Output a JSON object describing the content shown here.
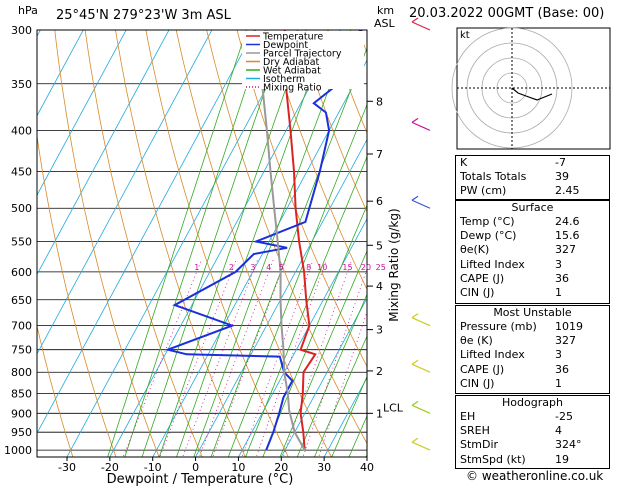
{
  "header": {
    "hpa_unit": "hPa",
    "location": "25°45'N  279°23'W  3m  ASL",
    "km_unit": "km",
    "asl_unit": "ASL",
    "datetime": "20.03.2022  00GMT  (Base: 00)"
  },
  "legend": [
    {
      "label": "Temperature",
      "color": "#dd2222"
    },
    {
      "label": "Dewpoint",
      "color": "#1a2fdd"
    },
    {
      "label": "Parcel Trajectory",
      "color": "#999999"
    },
    {
      "label": "Dry Adiabat",
      "color": "#d98a2a"
    },
    {
      "label": "Wet Adiabat",
      "color": "#33aa22"
    },
    {
      "label": "Isotherm",
      "color": "#22aadd"
    },
    {
      "label": "Mixing Ratio",
      "color": "#cc1199"
    }
  ],
  "chart_data": {
    "type": "line",
    "title": "",
    "xlabel": "Dewpoint / Temperature (°C)",
    "ylabel_right": "Mixing Ratio (g/kg)",
    "pressure_levels": [
      300,
      350,
      400,
      450,
      500,
      550,
      600,
      650,
      700,
      750,
      800,
      850,
      900,
      950,
      1000
    ],
    "x_ticks": [
      -30,
      -20,
      -10,
      0,
      10,
      20,
      30,
      40
    ],
    "xlim": [
      -37,
      40
    ],
    "plim": [
      300,
      1020
    ],
    "km_ticks": [
      {
        "label": "8",
        "p": 368
      },
      {
        "label": "7",
        "p": 428
      },
      {
        "label": "6",
        "p": 490
      },
      {
        "label": "5",
        "p": 556
      },
      {
        "label": "4",
        "p": 625
      },
      {
        "label": "3",
        "p": 708
      },
      {
        "label": "2",
        "p": 797
      },
      {
        "label": "1",
        "p": 900
      }
    ],
    "lcl": {
      "label": "LCL",
      "p": 893
    },
    "mixing_ratio_labels": [
      "1",
      "2",
      "3",
      "4",
      "5",
      "8",
      "10",
      "15",
      "20",
      "25"
    ],
    "series": [
      {
        "name": "Temperature",
        "color": "#dd2222",
        "points": [
          [
            24.6,
            1000
          ],
          [
            22,
            950
          ],
          [
            19,
            900
          ],
          [
            17,
            850
          ],
          [
            14.5,
            800
          ],
          [
            15,
            760
          ],
          [
            11,
            750
          ],
          [
            10,
            700
          ],
          [
            6,
            650
          ],
          [
            2,
            600
          ],
          [
            -3,
            550
          ],
          [
            -8,
            500
          ],
          [
            -13,
            450
          ],
          [
            -19,
            400
          ],
          [
            -26,
            350
          ],
          [
            -33,
            300
          ]
        ]
      },
      {
        "name": "Dewpoint",
        "color": "#1a2fdd",
        "points": [
          [
            15.6,
            1000
          ],
          [
            15,
            950
          ],
          [
            14,
            900
          ],
          [
            13,
            860
          ],
          [
            13,
            820
          ],
          [
            10,
            800
          ],
          [
            7,
            765
          ],
          [
            -15,
            760
          ],
          [
            -20,
            750
          ],
          [
            -8,
            700
          ],
          [
            -24,
            660
          ],
          [
            -14,
            600
          ],
          [
            -12,
            570
          ],
          [
            -5,
            560
          ],
          [
            -13,
            550
          ],
          [
            -4,
            520
          ],
          [
            -7,
            450
          ],
          [
            -10,
            400
          ],
          [
            -13,
            380
          ],
          [
            -17,
            370
          ],
          [
            -12,
            340
          ],
          [
            -20,
            320
          ],
          [
            -15,
            300
          ]
        ]
      },
      {
        "name": "Parcel Trajectory",
        "color": "#999999",
        "points": [
          [
            24.6,
            1000
          ],
          [
            20,
            950
          ],
          [
            16,
            893
          ],
          [
            13.5,
            850
          ],
          [
            10,
            800
          ],
          [
            7,
            750
          ],
          [
            3.5,
            700
          ],
          [
            0,
            650
          ],
          [
            -3.5,
            600
          ],
          [
            -8,
            550
          ],
          [
            -13,
            500
          ],
          [
            -18.5,
            450
          ],
          [
            -24.5,
            400
          ],
          [
            -31.5,
            350
          ],
          [
            -40,
            300
          ]
        ]
      }
    ]
  },
  "hodograph": {
    "label": "kt"
  },
  "indices": {
    "rows": [
      {
        "label": "K",
        "value": "-7"
      },
      {
        "label": "Totals Totals",
        "value": "39"
      },
      {
        "label": "PW (cm)",
        "value": "2.45"
      }
    ]
  },
  "surface": {
    "title": "Surface",
    "rows": [
      {
        "label": "Temp (°C)",
        "value": "24.6"
      },
      {
        "label": "Dewp (°C)",
        "value": "15.6"
      },
      {
        "label": "θe(K)",
        "value": "327"
      },
      {
        "label": "Lifted Index",
        "value": "3"
      },
      {
        "label": "CAPE (J)",
        "value": "36"
      },
      {
        "label": "CIN (J)",
        "value": "1"
      }
    ]
  },
  "most_unstable": {
    "title": "Most Unstable",
    "rows": [
      {
        "label": "Pressure (mb)",
        "value": "1019"
      },
      {
        "label": "θe (K)",
        "value": "327"
      },
      {
        "label": "Lifted Index",
        "value": "3"
      },
      {
        "label": "CAPE (J)",
        "value": "36"
      },
      {
        "label": "CIN (J)",
        "value": "1"
      }
    ]
  },
  "hodograph_table": {
    "title": "Hodograph",
    "rows": [
      {
        "label": "EH",
        "value": "-25"
      },
      {
        "label": "SREH",
        "value": "4"
      },
      {
        "label": "StmDir",
        "value": "324°"
      },
      {
        "label": "StmSpd (kt)",
        "value": "19"
      }
    ]
  },
  "footer": {
    "credit": "© weatheronline.co.uk"
  }
}
